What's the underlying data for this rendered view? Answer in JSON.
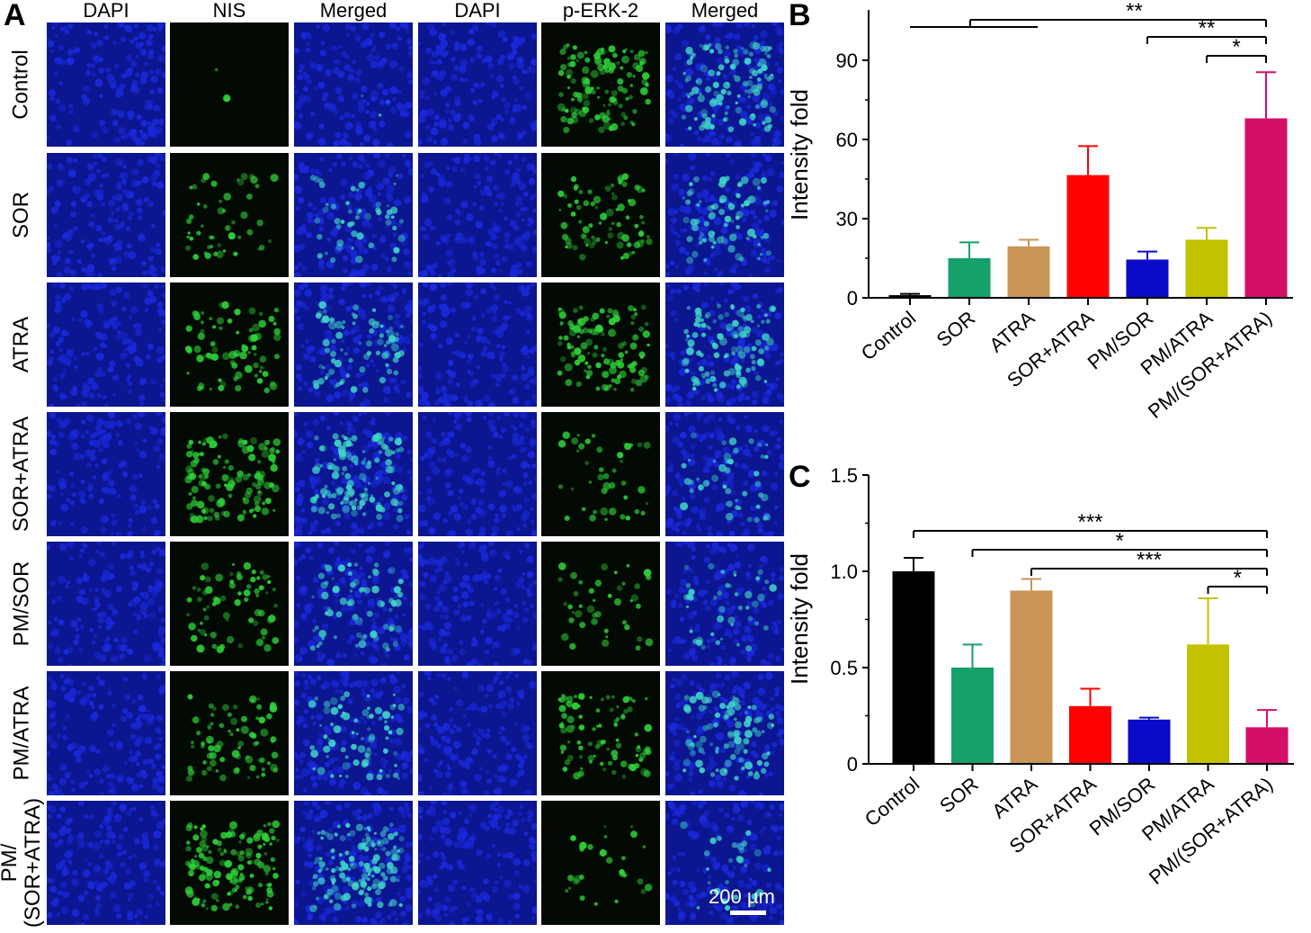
{
  "panel_labels": {
    "a": "A",
    "b": "B",
    "c": "C"
  },
  "micrograph": {
    "column_headers": [
      "DAPI",
      "NIS",
      "Merged",
      "DAPI",
      "p-ERK-2",
      "Merged"
    ],
    "row_labels": [
      "Control",
      "SOR",
      "ATRA",
      "SOR+ATRA",
      "PM/SOR",
      "PM/ATRA",
      "PM/\n(SOR+ATRA)"
    ],
    "row_label_lines": [
      [
        "Control"
      ],
      [
        "SOR"
      ],
      [
        "ATRA"
      ],
      [
        "SOR+ATRA"
      ],
      [
        "PM/SOR"
      ],
      [
        "PM/ATRA"
      ],
      [
        "PM/",
        "(SOR+ATRA)"
      ]
    ],
    "green_intensity": {
      "nis": [
        0.02,
        0.35,
        0.55,
        0.9,
        0.5,
        0.55,
        1.0
      ],
      "perk": [
        0.85,
        0.55,
        0.8,
        0.3,
        0.3,
        0.65,
        0.2
      ]
    },
    "scale_bar_label": "200 µm"
  },
  "colors": {
    "Control": "#000000",
    "SOR": "#16a06a",
    "ATRA": "#c99556",
    "SOR+ATRA": "#ff0000",
    "PM/SOR": "#0a0ac8",
    "PM/ATRA": "#c2c200",
    "PM/(SOR+ATRA)": "#d40f6a",
    "dapi_blue": "#1a28d8",
    "fluor_green": "#2ed43a"
  },
  "chart_data": [
    {
      "type": "bar",
      "panel": "B",
      "categories": [
        "Control",
        "SOR",
        "ATRA",
        "SOR+ATRA",
        "PM/SOR",
        "PM/ATRA",
        "PM/(SOR+ATRA)"
      ],
      "values": [
        1.0,
        15.0,
        19.5,
        46.5,
        14.5,
        22.0,
        68.0
      ],
      "error": [
        0.5,
        6.0,
        2.5,
        11.0,
        3.0,
        4.5,
        17.5
      ],
      "ylabel": "Intensity fold",
      "yticks": [
        0,
        30,
        60,
        90
      ],
      "ylim": [
        0,
        90
      ],
      "significance": [
        {
          "label": "**",
          "from": [
            0,
            2
          ],
          "to": 6
        },
        {
          "label": "**",
          "from": [
            4
          ],
          "to": 6
        },
        {
          "label": "*",
          "from": [
            5
          ],
          "to": 6
        }
      ]
    },
    {
      "type": "bar",
      "panel": "C",
      "categories": [
        "Control",
        "SOR",
        "ATRA",
        "SOR+ATRA",
        "PM/SOR",
        "PM/ATRA",
        "PM/(SOR+ATRA)"
      ],
      "values": [
        1.0,
        0.5,
        0.9,
        0.3,
        0.23,
        0.62,
        0.19
      ],
      "error": [
        0.07,
        0.12,
        0.06,
        0.09,
        0.01,
        0.24,
        0.09
      ],
      "ylabel": "Intensity fold",
      "yticks": [
        "0",
        "0.5",
        "1.0",
        "1.5"
      ],
      "ylim": [
        0,
        1.5
      ],
      "significance": [
        {
          "label": "***",
          "from": [
            0
          ],
          "to": 6
        },
        {
          "label": "*",
          "from": [
            1
          ],
          "to": 6
        },
        {
          "label": "***",
          "from": [
            2
          ],
          "to": 6
        },
        {
          "label": "*",
          "from": [
            5
          ],
          "to": 6
        }
      ]
    }
  ]
}
